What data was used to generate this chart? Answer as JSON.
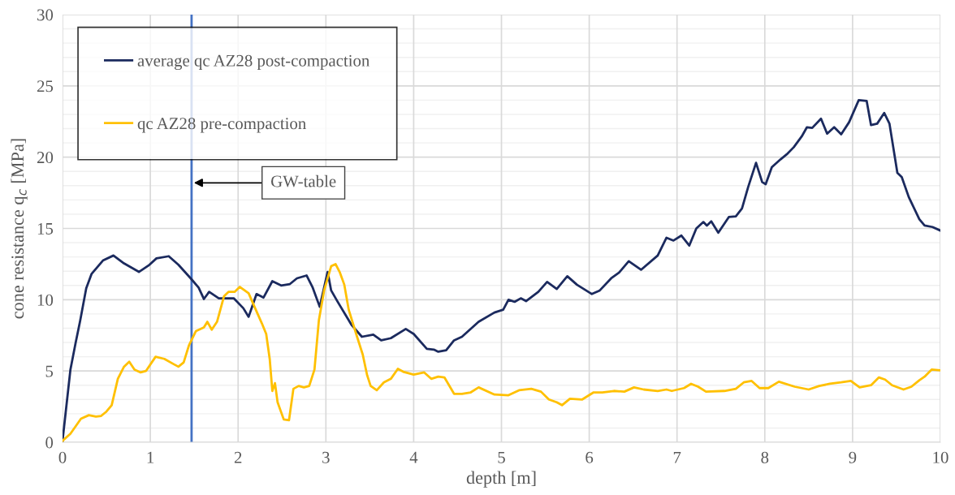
{
  "chart_data": {
    "type": "line",
    "xlabel": "depth [m]",
    "ylabel": "cone resistance q$_{c}$ [MPa]",
    "xlim": [
      0,
      10
    ],
    "xticks": [
      0,
      1,
      2,
      3,
      4,
      5,
      6,
      7,
      8,
      9,
      10
    ],
    "ylim": [
      0,
      30
    ],
    "yticks": [
      0,
      {
        "value": 1,
        "label": null
      },
      {
        "value": 2,
        "label": null
      },
      {
        "value": 3,
        "label": null
      },
      {
        "value": 4,
        "label": null
      },
      5,
      {
        "value": 6,
        "label": null
      },
      {
        "value": 7,
        "label": null
      },
      {
        "value": 8,
        "label": null
      },
      {
        "value": 9,
        "label": null
      },
      10,
      {
        "value": 11,
        "label": null
      },
      {
        "value": 12,
        "label": null
      },
      {
        "value": 13,
        "label": null
      },
      {
        "value": 14,
        "label": null
      },
      15,
      {
        "value": 16,
        "label": null
      },
      {
        "value": 17,
        "label": null
      },
      {
        "value": 18,
        "label": null
      },
      {
        "value": 19,
        "label": null
      },
      20,
      {
        "value": 21,
        "label": null
      },
      {
        "value": 22,
        "label": null
      },
      {
        "value": 23,
        "label": null
      },
      {
        "value": 24,
        "label": null
      },
      25,
      {
        "value": 26,
        "label": null
      },
      {
        "value": 27,
        "label": null
      },
      {
        "value": 28,
        "label": null
      },
      {
        "value": 29,
        "label": null
      },
      30
    ],
    "grid": true,
    "legend": "top left",
    "line_style": "solid",
    "marker": "none",
    "series": [
      {
        "name": "average qc AZ28 post-compaction",
        "color": "#1b2a5e",
        "x": [
          0,
          0.09,
          0.15,
          0.2,
          0.27,
          0.33,
          0.46,
          0.58,
          0.7,
          0.87,
          0.98,
          1.07,
          1.21,
          1.32,
          1.46,
          1.55,
          1.61,
          1.67,
          1.78,
          1.95,
          2.06,
          2.12,
          2.21,
          2.29,
          2.39,
          2.49,
          2.59,
          2.67,
          2.78,
          2.85,
          2.93,
          3.02,
          3.06,
          3.13,
          3.29,
          3.41,
          3.54,
          3.63,
          3.74,
          3.91,
          4.0,
          4.15,
          4.23,
          4.28,
          4.37,
          4.46,
          4.55,
          4.74,
          4.92,
          5.02,
          5.08,
          5.15,
          5.22,
          5.28,
          5.42,
          5.52,
          5.63,
          5.75,
          5.86,
          6.03,
          6.12,
          6.25,
          6.34,
          6.45,
          6.59,
          6.78,
          6.88,
          6.96,
          7.05,
          7.14,
          7.22,
          7.3,
          7.34,
          7.39,
          7.47,
          7.59,
          7.67,
          7.74,
          7.81,
          7.9,
          7.97,
          8.01,
          8.08,
          8.18,
          8.25,
          8.33,
          8.42,
          8.48,
          8.54,
          8.64,
          8.71,
          8.79,
          8.87,
          8.96,
          9.07,
          9.16,
          9.21,
          9.28,
          9.36,
          9.42,
          9.51,
          9.56,
          9.64,
          9.76,
          9.82,
          9.91,
          10.0
        ],
        "values": [
          0.1,
          5.1,
          7.0,
          8.5,
          10.8,
          11.8,
          12.75,
          13.1,
          12.55,
          11.95,
          12.4,
          12.9,
          13.05,
          12.45,
          11.5,
          10.85,
          10.05,
          10.55,
          10.1,
          10.1,
          9.4,
          8.8,
          10.4,
          10.15,
          11.3,
          11.0,
          11.1,
          11.5,
          11.7,
          10.85,
          9.5,
          11.95,
          10.65,
          9.9,
          8.25,
          7.4,
          7.55,
          7.15,
          7.3,
          7.95,
          7.6,
          6.55,
          6.5,
          6.35,
          6.45,
          7.15,
          7.4,
          8.45,
          9.1,
          9.3,
          10.0,
          9.85,
          10.1,
          9.9,
          10.55,
          11.25,
          10.75,
          11.65,
          11.05,
          10.4,
          10.65,
          11.5,
          11.9,
          12.7,
          12.1,
          13.1,
          14.35,
          14.15,
          14.5,
          13.8,
          15.0,
          15.45,
          15.2,
          15.5,
          14.7,
          15.8,
          15.85,
          16.4,
          17.9,
          19.6,
          18.25,
          18.1,
          19.3,
          19.85,
          20.2,
          20.7,
          21.45,
          22.1,
          22.05,
          22.7,
          21.65,
          22.1,
          21.6,
          22.45,
          24.0,
          23.95,
          22.25,
          22.35,
          23.1,
          22.35,
          18.9,
          18.6,
          17.2,
          15.65,
          15.2,
          15.1,
          14.85
        ]
      },
      {
        "name": "qc AZ28 pre-compaction",
        "color": "#ffc000",
        "x": [
          0,
          0.09,
          0.21,
          0.3,
          0.38,
          0.44,
          0.5,
          0.56,
          0.63,
          0.7,
          0.76,
          0.82,
          0.89,
          0.95,
          1.06,
          1.16,
          1.26,
          1.32,
          1.38,
          1.44,
          1.52,
          1.61,
          1.65,
          1.7,
          1.76,
          1.84,
          1.89,
          1.96,
          2.02,
          2.12,
          2.18,
          2.27,
          2.32,
          2.36,
          2.39,
          2.42,
          2.45,
          2.52,
          2.58,
          2.63,
          2.69,
          2.75,
          2.81,
          2.87,
          2.92,
          2.98,
          3.06,
          3.11,
          3.16,
          3.21,
          3.26,
          3.35,
          3.42,
          3.47,
          3.51,
          3.58,
          3.66,
          3.74,
          3.82,
          3.88,
          4.0,
          4.12,
          4.2,
          4.28,
          4.35,
          4.46,
          4.55,
          4.65,
          4.74,
          4.92,
          5.08,
          5.2,
          5.34,
          5.45,
          5.54,
          5.63,
          5.69,
          5.78,
          5.92,
          6.05,
          6.15,
          6.28,
          6.4,
          6.51,
          6.62,
          6.78,
          6.88,
          6.94,
          7.08,
          7.16,
          7.24,
          7.33,
          7.54,
          7.67,
          7.76,
          7.85,
          7.94,
          8.04,
          8.16,
          8.34,
          8.5,
          8.62,
          8.74,
          8.87,
          8.98,
          9.08,
          9.21,
          9.3,
          9.37,
          9.45,
          9.58,
          9.67,
          9.76,
          9.82,
          9.9,
          9.99
        ],
        "values": [
          0.1,
          0.6,
          1.65,
          1.9,
          1.8,
          1.85,
          2.15,
          2.6,
          4.45,
          5.3,
          5.65,
          5.1,
          4.9,
          5.0,
          6.0,
          5.85,
          5.5,
          5.3,
          5.6,
          6.8,
          7.8,
          8.05,
          8.45,
          7.9,
          8.45,
          10.25,
          10.55,
          10.55,
          10.9,
          10.45,
          9.6,
          8.35,
          7.6,
          5.85,
          3.6,
          4.15,
          2.8,
          1.6,
          1.55,
          3.75,
          3.95,
          3.85,
          3.95,
          5.1,
          8.55,
          10.65,
          12.35,
          12.5,
          11.9,
          11.05,
          9.3,
          7.5,
          6.15,
          4.7,
          3.95,
          3.65,
          4.2,
          4.45,
          5.15,
          4.95,
          4.75,
          4.9,
          4.45,
          4.6,
          4.55,
          3.4,
          3.4,
          3.5,
          3.85,
          3.35,
          3.3,
          3.65,
          3.75,
          3.55,
          3.0,
          2.8,
          2.6,
          3.05,
          3.0,
          3.5,
          3.5,
          3.6,
          3.55,
          3.85,
          3.7,
          3.6,
          3.7,
          3.6,
          3.8,
          4.1,
          3.9,
          3.55,
          3.6,
          3.75,
          4.2,
          4.3,
          3.8,
          3.8,
          4.25,
          3.9,
          3.7,
          3.95,
          4.1,
          4.2,
          4.3,
          3.85,
          4.0,
          4.55,
          4.4,
          4.0,
          3.7,
          3.9,
          4.35,
          4.6,
          5.1,
          5.05
        ]
      }
    ],
    "ref_lines": [
      {
        "axis": "x",
        "value": 1.47,
        "color": "#4472c4",
        "line_style": "solid"
      }
    ],
    "annotations": [
      {
        "text": "GW-table",
        "x": 1.47,
        "y": 18.2
      }
    ]
  }
}
